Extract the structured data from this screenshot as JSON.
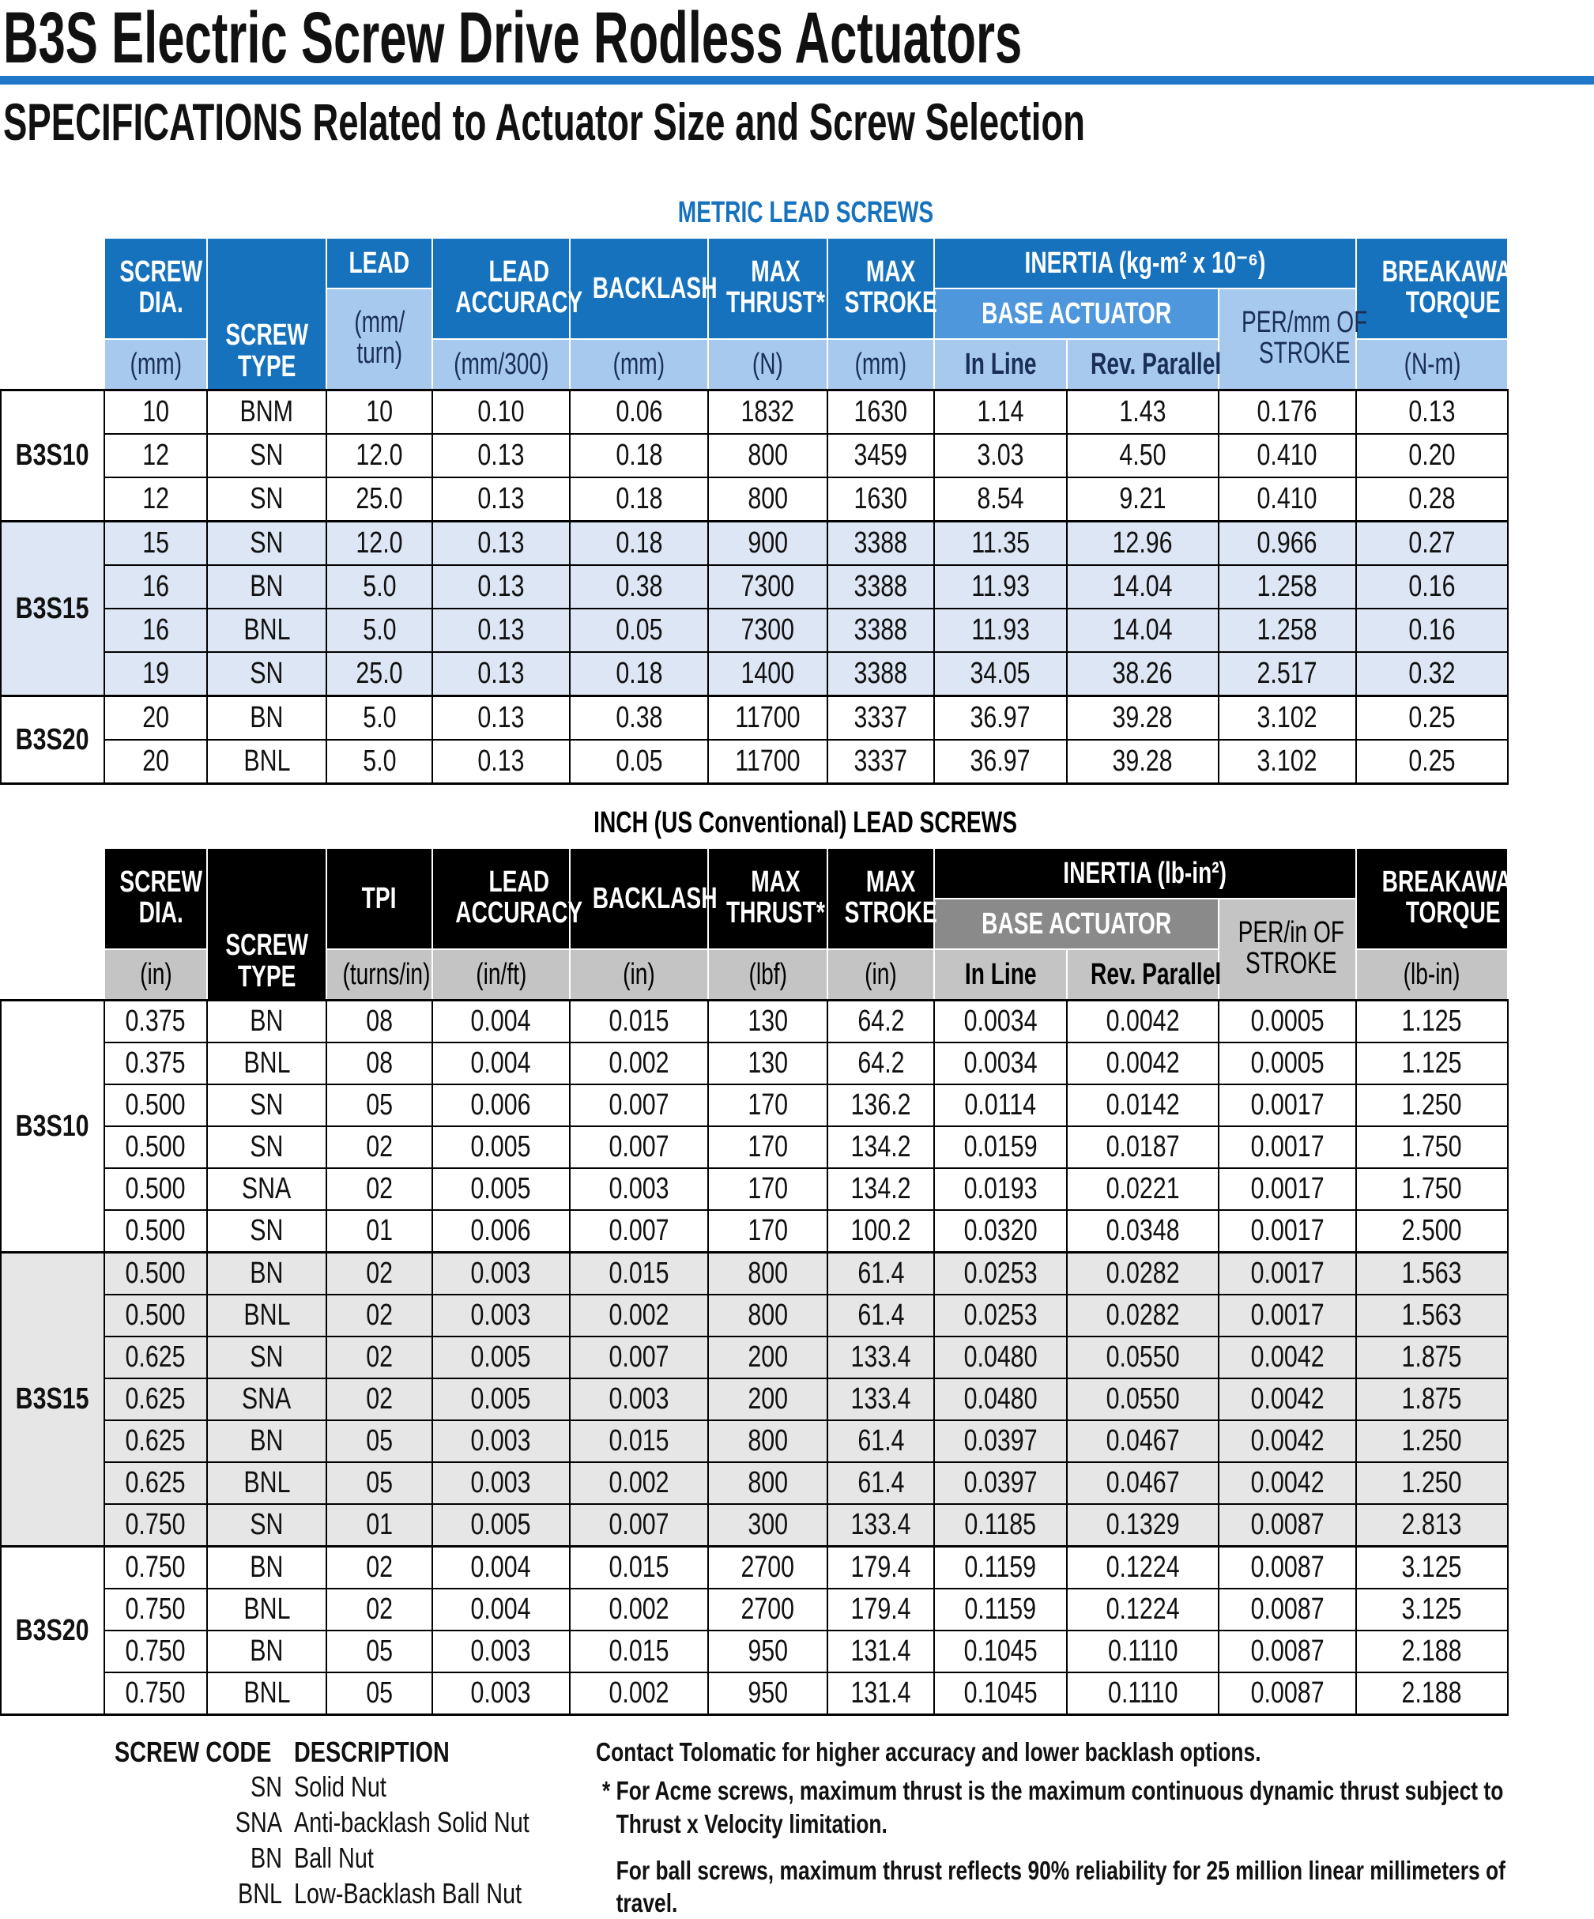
{
  "header": {
    "title": "B3S Electric Screw Drive Rodless Actuators",
    "subtitle": "SPECIFICATIONS Related to Actuator Size and Screw Selection"
  },
  "metric": {
    "caption": "METRIC LEAD SCREWS",
    "headers": [
      "SCREW\nDIA.",
      "SCREW\nTYPE",
      "LEAD",
      "LEAD\nACCURACY",
      "BACKLASH",
      "MAX\nTHRUST*",
      "MAX\nSTROKE",
      "INERTIA (kg-m² x 10⁻⁶)",
      "BREAKAWAY\nTORQUE",
      "(mm/\nturn)",
      "BASE ACTUATOR",
      "PER/mm OF\nSTROKE",
      "(mm)",
      "(mm/300)",
      "(mm)",
      "(N)",
      "(mm)",
      "In Line",
      "Rev. Parallel",
      "(N-m)"
    ],
    "groups": [
      {
        "name": "B3S10",
        "rows": [
          [
            "10",
            "BNM",
            "10",
            "0.10",
            "0.06",
            "1832",
            "1630",
            "1.14",
            "1.43",
            "0.176",
            "0.13"
          ],
          [
            "12",
            "SN",
            "12.0",
            "0.13",
            "0.18",
            "800",
            "3459",
            "3.03",
            "4.50",
            "0.410",
            "0.20"
          ],
          [
            "12",
            "SN",
            "25.0",
            "0.13",
            "0.18",
            "800",
            "1630",
            "8.54",
            "9.21",
            "0.410",
            "0.28"
          ]
        ]
      },
      {
        "name": "B3S15",
        "rows": [
          [
            "15",
            "SN",
            "12.0",
            "0.13",
            "0.18",
            "900",
            "3388",
            "11.35",
            "12.96",
            "0.966",
            "0.27"
          ],
          [
            "16",
            "BN",
            "5.0",
            "0.13",
            "0.38",
            "7300",
            "3388",
            "11.93",
            "14.04",
            "1.258",
            "0.16"
          ],
          [
            "16",
            "BNL",
            "5.0",
            "0.13",
            "0.05",
            "7300",
            "3388",
            "11.93",
            "14.04",
            "1.258",
            "0.16"
          ],
          [
            "19",
            "SN",
            "25.0",
            "0.13",
            "0.18",
            "1400",
            "3388",
            "34.05",
            "38.26",
            "2.517",
            "0.32"
          ]
        ]
      },
      {
        "name": "B3S20",
        "rows": [
          [
            "20",
            "BN",
            "5.0",
            "0.13",
            "0.38",
            "11700",
            "3337",
            "36.97",
            "39.28",
            "3.102",
            "0.25"
          ],
          [
            "20",
            "BNL",
            "5.0",
            "0.13",
            "0.05",
            "11700",
            "3337",
            "36.97",
            "39.28",
            "3.102",
            "0.25"
          ]
        ]
      }
    ]
  },
  "inch": {
    "caption": "INCH (US Conventional) LEAD SCREWS",
    "headers": [
      "SCREW\nDIA.",
      "SCREW\nTYPE",
      "TPI",
      "LEAD\nACCURACY",
      "BACKLASH",
      "MAX\nTHRUST*",
      "MAX\nSTROKE",
      "INERTIA (lb-in²)",
      "BREAKAWAY\nTORQUE",
      "BASE ACTUATOR",
      "PER/in OF\nSTROKE",
      "(in)",
      "(turns/in)",
      "(in/ft)",
      "(in)",
      "(lbf)",
      "(in)",
      "In Line",
      "Rev. Parallel",
      "(lb-in)"
    ],
    "groups": [
      {
        "name": "B3S10",
        "rows": [
          [
            "0.375",
            "BN",
            "08",
            "0.004",
            "0.015",
            "130",
            "64.2",
            "0.0034",
            "0.0042",
            "0.0005",
            "1.125"
          ],
          [
            "0.375",
            "BNL",
            "08",
            "0.004",
            "0.002",
            "130",
            "64.2",
            "0.0034",
            "0.0042",
            "0.0005",
            "1.125"
          ],
          [
            "0.500",
            "SN",
            "05",
            "0.006",
            "0.007",
            "170",
            "136.2",
            "0.0114",
            "0.0142",
            "0.0017",
            "1.250"
          ],
          [
            "0.500",
            "SN",
            "02",
            "0.005",
            "0.007",
            "170",
            "134.2",
            "0.0159",
            "0.0187",
            "0.0017",
            "1.750"
          ],
          [
            "0.500",
            "SNA",
            "02",
            "0.005",
            "0.003",
            "170",
            "134.2",
            "0.0193",
            "0.0221",
            "0.0017",
            "1.750"
          ],
          [
            "0.500",
            "SN",
            "01",
            "0.006",
            "0.007",
            "170",
            "100.2",
            "0.0320",
            "0.0348",
            "0.0017",
            "2.500"
          ]
        ]
      },
      {
        "name": "B3S15",
        "rows": [
          [
            "0.500",
            "BN",
            "02",
            "0.003",
            "0.015",
            "800",
            "61.4",
            "0.0253",
            "0.0282",
            "0.0017",
            "1.563"
          ],
          [
            "0.500",
            "BNL",
            "02",
            "0.003",
            "0.002",
            "800",
            "61.4",
            "0.0253",
            "0.0282",
            "0.0017",
            "1.563"
          ],
          [
            "0.625",
            "SN",
            "02",
            "0.005",
            "0.007",
            "200",
            "133.4",
            "0.0480",
            "0.0550",
            "0.0042",
            "1.875"
          ],
          [
            "0.625",
            "SNA",
            "02",
            "0.005",
            "0.003",
            "200",
            "133.4",
            "0.0480",
            "0.0550",
            "0.0042",
            "1.875"
          ],
          [
            "0.625",
            "BN",
            "05",
            "0.003",
            "0.015",
            "800",
            "61.4",
            "0.0397",
            "0.0467",
            "0.0042",
            "1.250"
          ],
          [
            "0.625",
            "BNL",
            "05",
            "0.003",
            "0.002",
            "800",
            "61.4",
            "0.0397",
            "0.0467",
            "0.0042",
            "1.250"
          ],
          [
            "0.750",
            "SN",
            "01",
            "0.005",
            "0.007",
            "300",
            "133.4",
            "0.1185",
            "0.1329",
            "0.0087",
            "2.813"
          ]
        ]
      },
      {
        "name": "B3S20",
        "rows": [
          [
            "0.750",
            "BN",
            "02",
            "0.004",
            "0.015",
            "2700",
            "179.4",
            "0.1159",
            "0.1224",
            "0.0087",
            "3.125"
          ],
          [
            "0.750",
            "BNL",
            "02",
            "0.004",
            "0.002",
            "2700",
            "179.4",
            "0.1159",
            "0.1224",
            "0.0087",
            "3.125"
          ],
          [
            "0.750",
            "BN",
            "05",
            "0.003",
            "0.015",
            "950",
            "131.4",
            "0.1045",
            "0.1110",
            "0.0087",
            "2.188"
          ],
          [
            "0.750",
            "BNL",
            "05",
            "0.003",
            "0.002",
            "950",
            "131.4",
            "0.1045",
            "0.1110",
            "0.0087",
            "2.188"
          ]
        ]
      }
    ]
  },
  "legend": {
    "headers": [
      "SCREW CODE",
      "DESCRIPTION"
    ],
    "rows": [
      [
        "SN",
        "Solid Nut"
      ],
      [
        "SNA",
        "Anti-backlash Solid Nut"
      ],
      [
        "BN",
        "Ball Nut"
      ],
      [
        "BNL",
        "Low-Backlash Ball Nut"
      ]
    ]
  },
  "notes": [
    "Contact Tolomatic for higher accuracy and lower backlash options.",
    "* For Acme screws, maximum thrust is the maximum continuous dynamic thrust subject to Thrust x Velocity limitation.",
    "For ball screws, maximum thrust reflects 90% reliability for 25 million linear millimeters of travel."
  ]
}
